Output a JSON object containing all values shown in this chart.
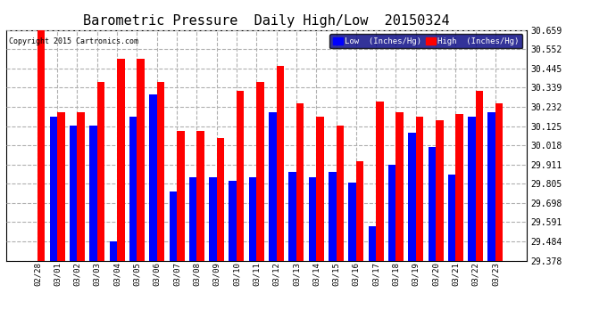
{
  "title": "Barometric Pressure  Daily High/Low  20150324",
  "copyright": "Copyright 2015 Cartronics.com",
  "legend_low": "Low  (Inches/Hg)",
  "legend_high": "High  (Inches/Hg)",
  "categories": [
    "02/28",
    "03/01",
    "03/02",
    "03/03",
    "03/04",
    "03/05",
    "03/06",
    "03/07",
    "03/08",
    "03/09",
    "03/10",
    "03/11",
    "03/12",
    "03/13",
    "03/14",
    "03/15",
    "03/16",
    "03/17",
    "03/18",
    "03/19",
    "03/20",
    "03/21",
    "03/22",
    "03/23"
  ],
  "low_values": [
    29.378,
    30.18,
    30.13,
    30.13,
    29.484,
    30.18,
    30.3,
    29.76,
    29.84,
    29.84,
    29.82,
    29.84,
    30.2,
    29.87,
    29.84,
    29.87,
    29.81,
    29.57,
    29.91,
    30.09,
    30.01,
    29.855,
    30.18,
    30.2
  ],
  "high_values": [
    30.659,
    30.2,
    30.2,
    30.37,
    30.5,
    30.5,
    30.37,
    30.1,
    30.1,
    30.06,
    30.32,
    30.37,
    30.46,
    30.25,
    30.18,
    30.13,
    29.93,
    30.26,
    30.2,
    30.18,
    30.16,
    30.19,
    30.32,
    30.25
  ],
  "ylim_min": 29.378,
  "ylim_max": 30.659,
  "yticks": [
    30.659,
    30.552,
    30.445,
    30.339,
    30.232,
    30.125,
    30.018,
    29.911,
    29.805,
    29.698,
    29.591,
    29.484,
    29.378
  ],
  "bg_color": "#ffffff",
  "plot_bg_color": "#ffffff",
  "bar_color_low": "#0000ff",
  "bar_color_high": "#ff0000",
  "grid_color": "#b0b0b0",
  "title_fontsize": 11,
  "bar_width": 0.38
}
